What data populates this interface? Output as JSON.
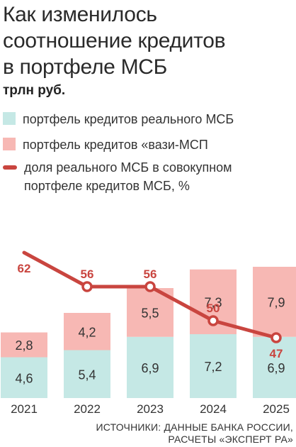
{
  "title": "Как изменилось\nсоотношение кредитов\nв портфеле МСБ",
  "subtitle": "трлн руб.",
  "legend": {
    "real": {
      "label": "портфель кредитов реального МСБ",
      "color": "#c5e8e5"
    },
    "quasi": {
      "label": "портфель кредитов «вази-МСП",
      "color": "#f7b8b4"
    },
    "share": {
      "label": "доля реального МСБ в совокупном портфеле кредитов МСБ, %",
      "color": "#c9453f"
    }
  },
  "source": {
    "line1": "ИСТОЧНИКИ: ДАННЫЕ БАНКА РОССИИ,",
    "line2": "РАСЧЕТЫ «ЭКСПЕРТ РА»"
  },
  "chart_data": {
    "type": "bar",
    "stacked": true,
    "categories": [
      "2021",
      "2022",
      "2023",
      "2024",
      "2025"
    ],
    "series": [
      {
        "name": "портфель кредитов реального МСБ",
        "values": [
          4.6,
          5.4,
          6.9,
          7.2,
          6.9
        ],
        "labels": [
          "4,6",
          "5,4",
          "6,9",
          "7,2",
          "6,9"
        ],
        "color": "#c5e8e5"
      },
      {
        "name": "портфель кредитов «вази-МСП",
        "values": [
          2.8,
          4.2,
          5.5,
          7.3,
          7.9
        ],
        "labels": [
          "2,8",
          "4,2",
          "5,5",
          "7,3",
          "7,9"
        ],
        "color": "#f7b8b4"
      }
    ],
    "line_series": {
      "name": "доля реального МСБ в совокупном портфеле кредитов МСБ, %",
      "values": [
        62,
        56,
        56,
        50,
        47
      ],
      "labels": [
        "62",
        "56",
        "56",
        "50",
        "47"
      ],
      "color": "#c9453f",
      "ylim": [
        40,
        70
      ]
    },
    "ylim": [
      0,
      15.2
    ],
    "grid": false
  }
}
